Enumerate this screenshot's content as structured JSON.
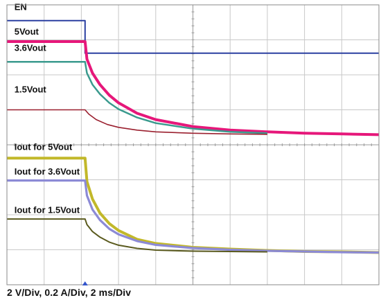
{
  "chart_data": {
    "type": "line",
    "xlabel": "",
    "ylabel": "",
    "title": "",
    "x_divisions": 10,
    "y_divisions": 8,
    "x_units": "divisions",
    "x_range": [
      0,
      10
    ],
    "y_range": [
      0,
      8
    ],
    "grid": true,
    "trigger_marker": "up-arrow",
    "caption": "2 V/Div, 0.2 A/Div, 2 ms/Div",
    "series": [
      {
        "name": "EN",
        "color": "#2a3fa0",
        "width": 2.0,
        "points": [
          [
            0,
            7.55
          ],
          [
            2.1,
            7.55
          ],
          [
            2.1,
            6.62
          ],
          [
            10,
            6.62
          ]
        ]
      },
      {
        "name": "5Vout",
        "color": "#e6177a",
        "width": 4.0,
        "points": [
          [
            0,
            6.95
          ],
          [
            2.1,
            6.95
          ],
          [
            2.15,
            6.45
          ],
          [
            2.3,
            6.05
          ],
          [
            2.5,
            5.72
          ],
          [
            2.75,
            5.42
          ],
          [
            3.0,
            5.2
          ],
          [
            3.5,
            4.9
          ],
          [
            4.0,
            4.72
          ],
          [
            5.0,
            4.52
          ],
          [
            6.0,
            4.42
          ],
          [
            7.0,
            4.37
          ],
          [
            8.0,
            4.33
          ],
          [
            9.0,
            4.31
          ],
          [
            10,
            4.29
          ]
        ]
      },
      {
        "name": "3.6Vout",
        "color": "#3a9a8e",
        "width": 2.5,
        "points": [
          [
            0,
            6.37
          ],
          [
            2.1,
            6.37
          ],
          [
            2.15,
            6.05
          ],
          [
            2.3,
            5.72
          ],
          [
            2.5,
            5.45
          ],
          [
            2.75,
            5.2
          ],
          [
            3.0,
            5.02
          ],
          [
            3.5,
            4.78
          ],
          [
            4.0,
            4.62
          ],
          [
            5.0,
            4.46
          ],
          [
            6.0,
            4.37
          ],
          [
            7.0,
            4.33
          ]
        ]
      },
      {
        "name": "1.5Vout",
        "color": "#9a1f2e",
        "width": 1.6,
        "points": [
          [
            0,
            5.0
          ],
          [
            2.1,
            5.0
          ],
          [
            2.2,
            4.88
          ],
          [
            2.4,
            4.72
          ],
          [
            2.7,
            4.58
          ],
          [
            3.0,
            4.5
          ],
          [
            3.5,
            4.42
          ],
          [
            4.0,
            4.37
          ],
          [
            5.0,
            4.33
          ],
          [
            6.0,
            4.31
          ],
          [
            7.0,
            4.3
          ]
        ]
      },
      {
        "name": "Iout for 5Vout",
        "color": "#c2b82a",
        "width": 4.0,
        "points": [
          [
            0,
            3.62
          ],
          [
            2.1,
            3.62
          ],
          [
            2.15,
            2.95
          ],
          [
            2.3,
            2.45
          ],
          [
            2.5,
            2.05
          ],
          [
            2.75,
            1.75
          ],
          [
            3.0,
            1.55
          ],
          [
            3.5,
            1.3
          ],
          [
            4.0,
            1.18
          ],
          [
            5.0,
            1.07
          ],
          [
            6.0,
            1.02
          ],
          [
            7.0,
            0.98
          ],
          [
            8.0,
            0.95
          ],
          [
            9.0,
            0.94
          ],
          [
            10,
            0.92
          ]
        ]
      },
      {
        "name": "Iout for 3.6Vout",
        "color": "#8c8ad6",
        "width": 3.2,
        "points": [
          [
            0,
            2.98
          ],
          [
            2.1,
            2.98
          ],
          [
            2.15,
            2.55
          ],
          [
            2.3,
            2.15
          ],
          [
            2.5,
            1.85
          ],
          [
            2.75,
            1.6
          ],
          [
            3.0,
            1.44
          ],
          [
            3.5,
            1.25
          ],
          [
            4.0,
            1.14
          ],
          [
            5.0,
            1.05
          ],
          [
            6.0,
            1.0
          ],
          [
            7.0,
            0.97
          ],
          [
            8.0,
            0.95
          ],
          [
            9.0,
            0.93
          ],
          [
            10,
            0.92
          ]
        ]
      },
      {
        "name": "Iout for 1.5Vout",
        "color": "#5a5a1e",
        "width": 2.0,
        "points": [
          [
            0,
            1.88
          ],
          [
            2.1,
            1.88
          ],
          [
            2.15,
            1.72
          ],
          [
            2.3,
            1.52
          ],
          [
            2.5,
            1.36
          ],
          [
            2.75,
            1.22
          ],
          [
            3.0,
            1.13
          ],
          [
            3.5,
            1.04
          ],
          [
            4.0,
            0.99
          ],
          [
            5.0,
            0.96
          ],
          [
            6.0,
            0.95
          ],
          [
            7.0,
            0.94
          ]
        ]
      }
    ],
    "trace_labels": [
      {
        "text": "EN",
        "x": 0.2,
        "y": 7.85
      },
      {
        "text": "5Vout",
        "x": 0.2,
        "y": 7.15
      },
      {
        "text": "3.6Vout",
        "x": 0.2,
        "y": 6.68
      },
      {
        "text": "1.5Vout",
        "x": 0.2,
        "y": 5.5
      },
      {
        "text": "Iout for 5Vout",
        "x": 0.2,
        "y": 3.85
      },
      {
        "text": "Iout for 3.6Vout",
        "x": 0.2,
        "y": 3.15
      },
      {
        "text": "Iout for 1.5Vout",
        "x": 0.2,
        "y": 2.05
      }
    ]
  }
}
